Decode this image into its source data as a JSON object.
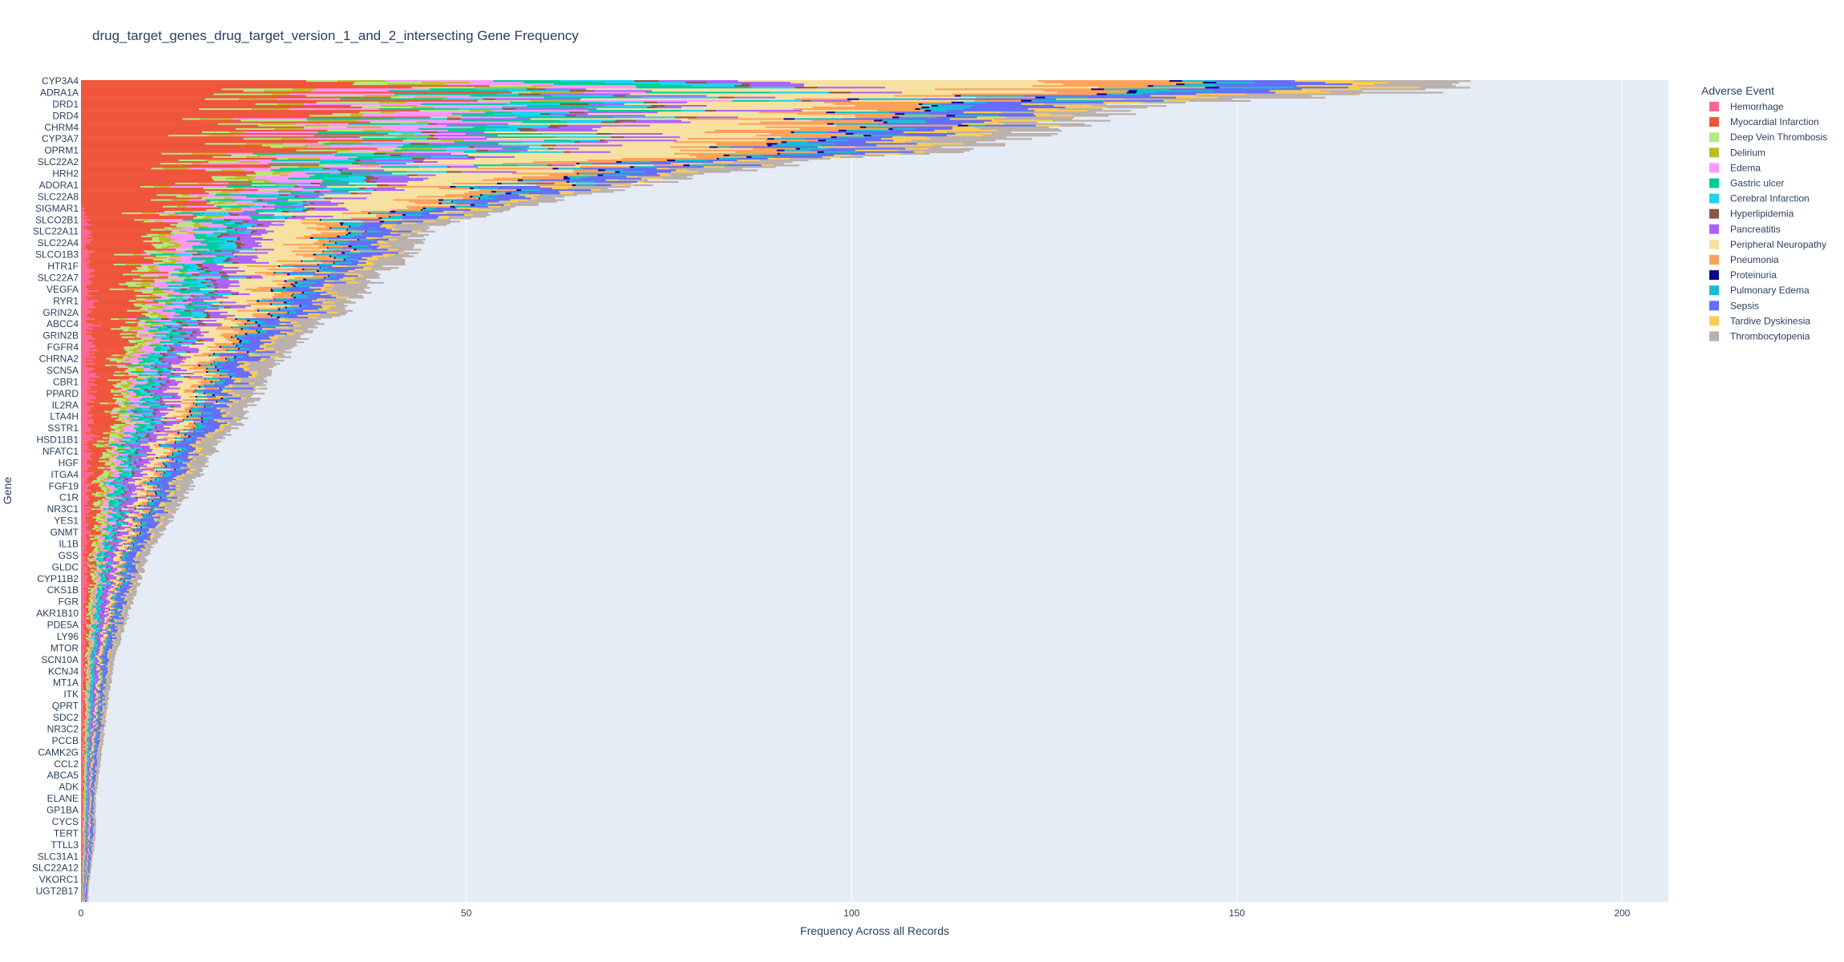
{
  "chart_data": {
    "type": "bar",
    "orientation": "horizontal",
    "barmode": "stack",
    "title": "drug_target_genes_drug_target_version_1_and_2_intersecting Gene Frequency",
    "xlabel": "Frequency Across all Records",
    "ylabel": "Gene",
    "xlim": [
      0,
      206
    ],
    "xticks": [
      0,
      50,
      100,
      150,
      200
    ],
    "grid": true,
    "legend": {
      "title": "Adverse Event",
      "placement": "right"
    },
    "series": [
      {
        "name": "Hemorrhage",
        "color": "#FF6692"
      },
      {
        "name": "Myocardial Infarction",
        "color": "#EF553B"
      },
      {
        "name": "Deep Vein Thrombosis",
        "color": "#B6E880"
      },
      {
        "name": "Delirium",
        "color": "#BCBD22"
      },
      {
        "name": "Edema",
        "color": "#FF97FF"
      },
      {
        "name": "Gastric ulcer",
        "color": "#00CC96"
      },
      {
        "name": "Cerebral Infarction",
        "color": "#19D3F3"
      },
      {
        "name": "Hyperlipidemia",
        "color": "#8C564B"
      },
      {
        "name": "Pancreatitis",
        "color": "#AB63FA"
      },
      {
        "name": "Peripheral Neuropathy",
        "color": "#F7E1A0"
      },
      {
        "name": "Pneumonia",
        "color": "#FFA15A"
      },
      {
        "name": "Proteinuria",
        "color": "#0D0887"
      },
      {
        "name": "Pulmonary Edema",
        "color": "#17BECF"
      },
      {
        "name": "Sepsis",
        "color": "#636EFA"
      },
      {
        "name": "Tardive Dyskinesia",
        "color": "#FECB52"
      },
      {
        "name": "Thrombocytopenia",
        "color": "#BAB0AC"
      }
    ],
    "gene_ticks": [
      "CYP3A4",
      "ADRA1A",
      "DRD1",
      "DRD4",
      "CHRM4",
      "CYP3A7",
      "OPRM1",
      "SLC22A2",
      "HRH2",
      "ADORA1",
      "SLC22A8",
      "SIGMAR1",
      "SLCO2B1",
      "SLC22A11",
      "SLC22A4",
      "SLCO1B3",
      "HTR1F",
      "SLC22A7",
      "VEGFA",
      "RYR1",
      "GRIN2A",
      "ABCC4",
      "GRIN2B",
      "FGFR4",
      "CHRNA2",
      "SCN5A",
      "CBR1",
      "PPARD",
      "IL2RA",
      "LTA4H",
      "SSTR1",
      "HSD11B1",
      "NFATC1",
      "HGF",
      "ITGA4",
      "FGF19",
      "C1R",
      "NR3C1",
      "YES1",
      "GNMT",
      "IL1B",
      "GSS",
      "GLDC",
      "CYP11B2",
      "CKS1B",
      "FGR",
      "AKR1B10",
      "PDE5A",
      "LY96",
      "MTOR",
      "SCN10A",
      "KCNJ4",
      "MT1A",
      "ITK",
      "QPRT",
      "SDC2",
      "NR3C2",
      "PCCB",
      "CAMK2G",
      "CCL2",
      "ABCA5",
      "ADK",
      "ELANE",
      "GP1BA",
      "CYCS",
      "TERT",
      "TTLL3",
      "SLC31A1",
      "SLC22A12",
      "VKORC1",
      "UGT2B17"
    ],
    "max_values": [
      196,
      178,
      142,
      140,
      130,
      125,
      118,
      98,
      85,
      76,
      66,
      57,
      51,
      46,
      45,
      45,
      42,
      40,
      39,
      37,
      35,
      32,
      30,
      29,
      27,
      26,
      25,
      24,
      23,
      22,
      21,
      19,
      18,
      17,
      16,
      15,
      14,
      13,
      12,
      11,
      10,
      9,
      8.5,
      8,
      7.5,
      7,
      6.5,
      6,
      5.5,
      5,
      4.6,
      4.2,
      4,
      3.8,
      3.6,
      3.4,
      3.2,
      3,
      2.8,
      2.6,
      2.4,
      2.2,
      2,
      2,
      2,
      2,
      1.8,
      1.6,
      1.4,
      1.2,
      1
    ]
  }
}
